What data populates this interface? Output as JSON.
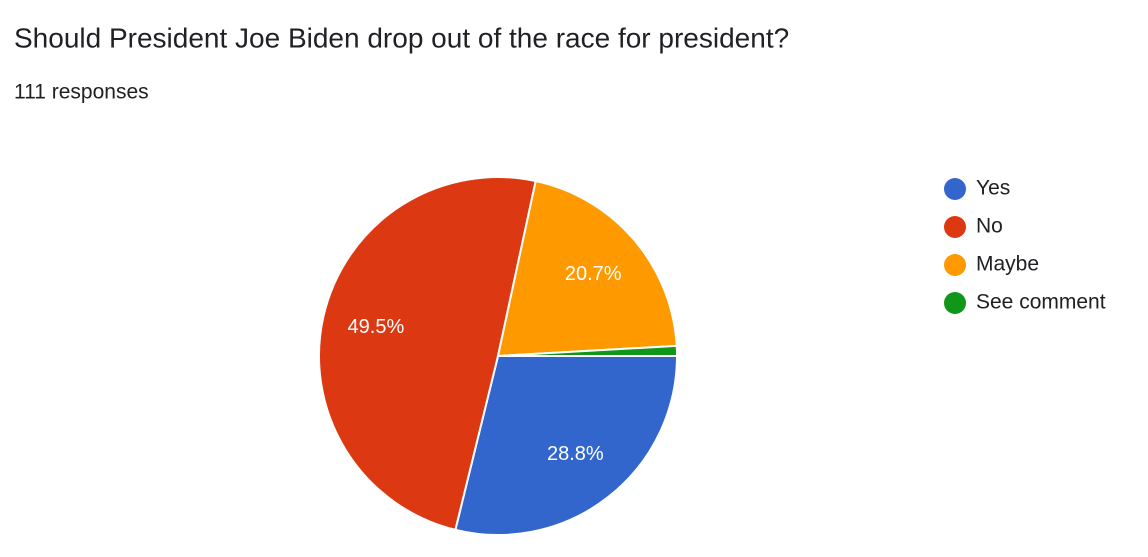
{
  "chart_data": {
    "type": "pie",
    "title": "Should President Joe Biden drop out of the race for president?",
    "subtitle": "111 responses",
    "categories": [
      "Yes",
      "No",
      "Maybe",
      "See comment"
    ],
    "values": [
      28.8,
      49.5,
      20.7,
      0.9
    ],
    "value_labels": [
      "28.8%",
      "49.5%",
      "20.7%",
      null
    ],
    "colors": [
      "#3366cc",
      "#dc3912",
      "#ff9900",
      "#109618"
    ],
    "legend": "right"
  }
}
